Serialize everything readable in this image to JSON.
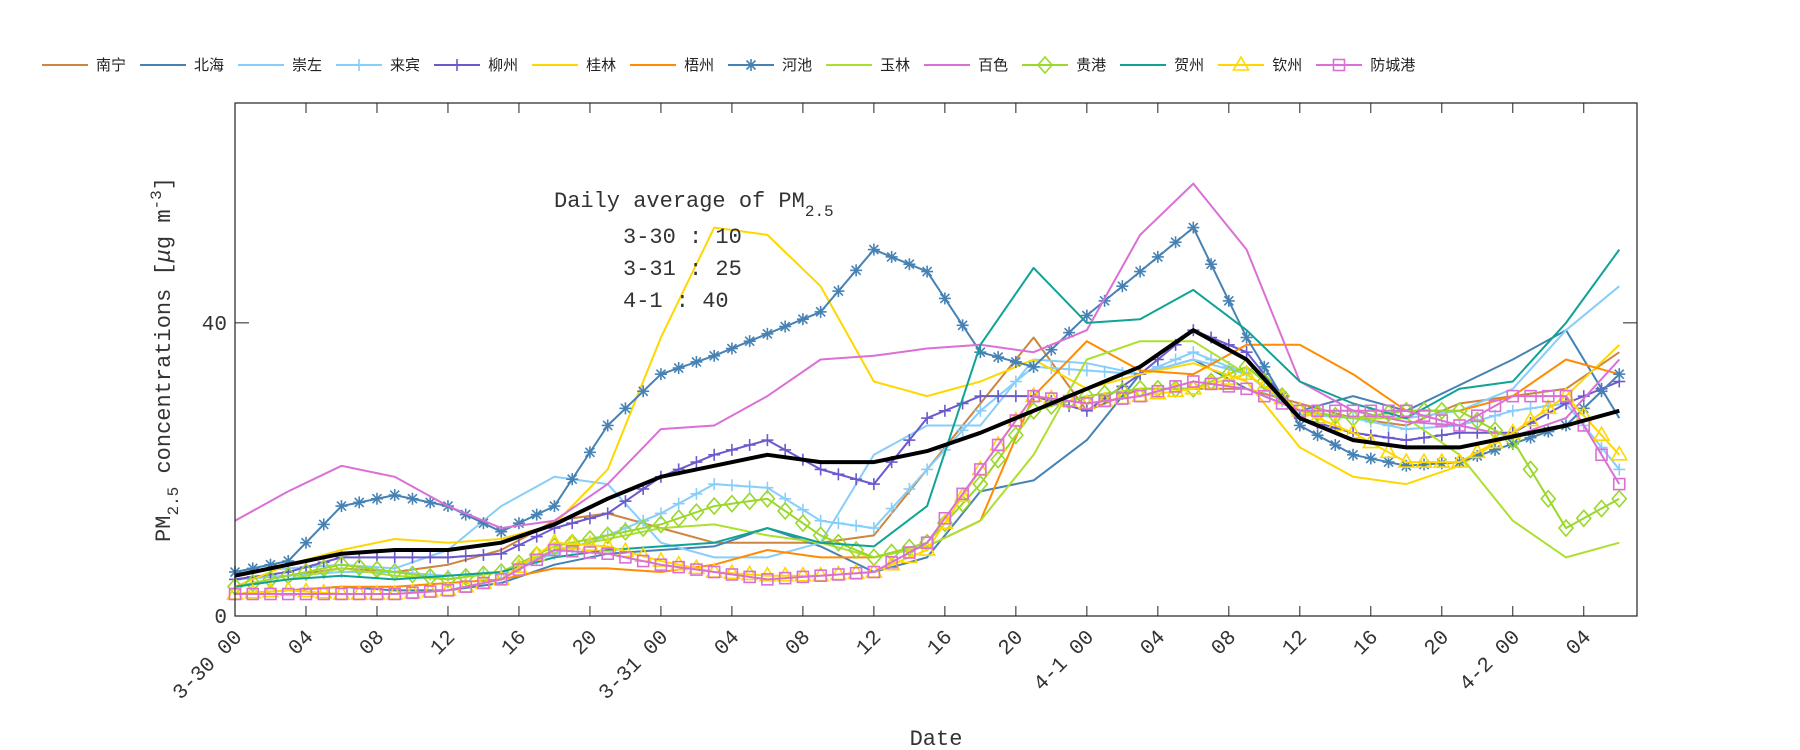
{
  "chart_data": {
    "type": "line",
    "xlabel": "Date",
    "ylabel": "PM2.5 concentrations [μg m-3]",
    "ylabel_parts": {
      "pm": "PM",
      "sub": "2.5",
      "rest": " concentrations [",
      "mu": "μ",
      "unit": "g m",
      "sup": "-3",
      "close": "]"
    },
    "xlim": [
      "3-30 00",
      "4-2 07"
    ],
    "ylim": [
      0,
      70
    ],
    "yticks": [
      "0",
      "40"
    ],
    "xticks": [
      "3-30 00",
      "04",
      "08",
      "12",
      "16",
      "20",
      "3-31 00",
      "04",
      "08",
      "12",
      "16",
      "20",
      "4-1 00",
      "04",
      "08",
      "12",
      "16",
      "20",
      "4-2 00",
      "04"
    ],
    "grid": false,
    "legend_placement": "top (outside, single row)",
    "annotation": {
      "title": "Daily average of PM",
      "title_sub": "2.5",
      "lines": [
        "3-30 : 10",
        "3-31 : 25",
        "4-1 : 40"
      ]
    },
    "x": [
      "3-30 00",
      "3-30 03",
      "3-30 06",
      "3-30 09",
      "3-30 12",
      "3-30 15",
      "3-30 18",
      "3-30 21",
      "3-31 00",
      "3-31 03",
      "3-31 06",
      "3-31 09",
      "3-31 12",
      "3-31 15",
      "3-31 18",
      "3-31 21",
      "4-1 00",
      "4-1 03",
      "4-1 06",
      "4-1 09",
      "4-1 12",
      "4-1 15",
      "4-1 18",
      "4-1 21",
      "4-2 00",
      "4-2 03",
      "4-2 06"
    ],
    "average_series": {
      "color": "#000000",
      "values": [
        5.5,
        7,
        8.5,
        9,
        9,
        10,
        12.5,
        16,
        19,
        20.5,
        22,
        21,
        21,
        22.5,
        25,
        28,
        31,
        34,
        39,
        35,
        27,
        24,
        23,
        23,
        24.5,
        26,
        28
      ]
    },
    "series": [
      {
        "name": "南宁",
        "color": "#CD853F",
        "marker": "none",
        "values": [
          5,
          5.5,
          6.5,
          6,
          7,
          9,
          13,
          14,
          12,
          10,
          10,
          10,
          11,
          20,
          29,
          38,
          28,
          31,
          31,
          31,
          29,
          27,
          26,
          29,
          30,
          31,
          36
        ]
      },
      {
        "name": "北海",
        "color": "#4682B4",
        "marker": "none",
        "values": [
          3,
          3.5,
          4,
          3.5,
          3.5,
          4.5,
          7,
          8.5,
          9,
          9.5,
          12,
          9.5,
          6,
          8,
          17,
          18.5,
          24,
          33,
          35,
          31,
          28,
          30,
          28,
          31.5,
          35,
          39,
          27
        ]
      },
      {
        "name": "崇左",
        "color": "#87CEFA",
        "marker": "none",
        "values": [
          6,
          6.5,
          7,
          6.5,
          9,
          15,
          19,
          18,
          10,
          8,
          8,
          10,
          22,
          26,
          26,
          35,
          34.5,
          33,
          35,
          33,
          28,
          27,
          27,
          28,
          31,
          39,
          45
        ]
      },
      {
        "name": "来宾",
        "color": "#87CEFA",
        "marker": "plus",
        "values": [
          5,
          5.5,
          6,
          6,
          5.5,
          6,
          8.5,
          11,
          14,
          18,
          17.5,
          13,
          12,
          20,
          28,
          34,
          33.5,
          33,
          36,
          33,
          27.5,
          27,
          25.5,
          26,
          28,
          29,
          20
        ]
      },
      {
        "name": "柳州",
        "color": "#6A5ACD",
        "marker": "plus",
        "values": [
          5,
          6,
          8,
          8,
          8,
          8.5,
          12,
          14,
          19,
          22,
          24,
          20,
          18,
          27,
          30,
          30,
          28,
          33,
          39,
          36,
          27,
          25,
          24,
          25,
          25,
          29,
          32
        ]
      },
      {
        "name": "桂林",
        "color": "#FFD700",
        "marker": "none",
        "values": [
          4,
          7,
          9,
          10.5,
          10,
          10.5,
          12.5,
          20,
          38,
          53,
          52,
          45,
          32,
          30,
          32,
          35,
          31,
          33,
          34.5,
          32,
          23,
          19,
          18,
          20.5,
          25,
          30,
          37
        ]
      },
      {
        "name": "梧州",
        "color": "#FF8C00",
        "marker": "none",
        "values": [
          3,
          3.5,
          4,
          4,
          4.5,
          5,
          6.5,
          6.5,
          6,
          7,
          9,
          8,
          8,
          9.5,
          13,
          30,
          37.5,
          33.5,
          33,
          37,
          37,
          33,
          28,
          28,
          30,
          35,
          33
        ]
      },
      {
        "name": "河池",
        "color": "#4682B4",
        "marker": "asterisk",
        "values": [
          6,
          7.5,
          15,
          16.5,
          15,
          11.5,
          15,
          26,
          33,
          35.5,
          38.5,
          41.5,
          50,
          47,
          36,
          34,
          41,
          47,
          53,
          38,
          26,
          22,
          20.5,
          21,
          23.5,
          26,
          33
        ]
      },
      {
        "name": "玉林",
        "color": "#ADE02E",
        "marker": "none",
        "values": [
          4,
          5,
          6.5,
          5.5,
          5,
          6,
          9,
          10.5,
          12,
          12.5,
          11,
          10,
          8,
          9.5,
          13,
          22,
          35,
          37.5,
          37.5,
          33,
          28,
          27,
          27,
          22,
          13,
          8,
          10
        ]
      },
      {
        "name": "百色",
        "color": "#DA70D6",
        "marker": "none",
        "values": [
          13,
          17,
          20.5,
          19,
          15,
          12,
          13,
          18,
          25.5,
          26,
          30,
          35,
          35.5,
          36.5,
          37,
          36,
          39,
          52,
          59,
          50,
          32,
          28,
          26.5,
          26,
          24.5,
          27,
          35
        ]
      },
      {
        "name": "贵港",
        "color": "#9AD82A",
        "marker": "diamond",
        "values": [
          4,
          5.5,
          7,
          6,
          5,
          6,
          9.5,
          11,
          12.5,
          15,
          16,
          11,
          8,
          10,
          18,
          28,
          30,
          31,
          31,
          34,
          28,
          27,
          28,
          28,
          24,
          12,
          16
        ]
      },
      {
        "name": "贺州",
        "color": "#0FA396",
        "marker": "none",
        "values": [
          4,
          5,
          5.5,
          5,
          5.5,
          6,
          8,
          9,
          9.5,
          10,
          12,
          10,
          9.5,
          15,
          37,
          47.5,
          40,
          40.5,
          44.5,
          39,
          32,
          29,
          27,
          31,
          32,
          40,
          50
        ]
      },
      {
        "name": "钦州",
        "color": "#FFD700",
        "marker": "triangle",
        "values": [
          3,
          3.5,
          3,
          3,
          3.5,
          5,
          10,
          9.5,
          7.5,
          6,
          5.5,
          5.5,
          6,
          9,
          20,
          30,
          29,
          30,
          31,
          33,
          28,
          25,
          21,
          21,
          25,
          30,
          22
        ]
      },
      {
        "name": "防城港",
        "color": "#DA70D6",
        "marker": "square",
        "values": [
          3,
          3,
          3,
          3,
          3.5,
          5,
          9,
          8.5,
          7,
          6,
          5,
          5.5,
          6,
          10,
          20,
          30,
          29,
          30,
          32,
          31,
          28,
          28,
          28,
          26,
          30,
          30,
          18
        ]
      }
    ]
  }
}
